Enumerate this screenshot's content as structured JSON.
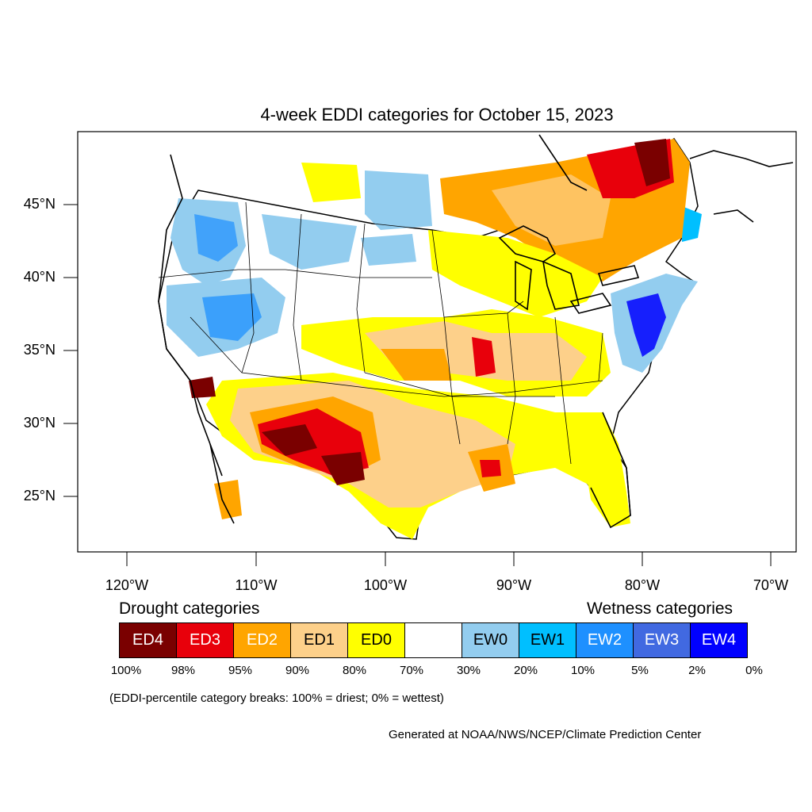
{
  "map": {
    "title": "4-week EDDI categories for October 15, 2023",
    "lat_labels": [
      "45°N",
      "40°N",
      "35°N",
      "30°N",
      "25°N"
    ],
    "lon_labels": [
      "120°W",
      "110°W",
      "100°W",
      "90°W",
      "80°W",
      "70°W"
    ],
    "lat_values": [
      45,
      40,
      35,
      30,
      25
    ],
    "lon_values": [
      -120,
      -110,
      -100,
      -90,
      -80,
      -70
    ]
  },
  "legend": {
    "drought_heading": "Drought categories",
    "wetness_heading": "Wetness categories",
    "categories": [
      {
        "label": "ED4",
        "color": "#7a0000",
        "text_color": "#ffffff"
      },
      {
        "label": "ED3",
        "color": "#e8000b",
        "text_color": "#ffffff"
      },
      {
        "label": "ED2",
        "color": "#ffa500",
        "text_color": "#ffffff"
      },
      {
        "label": "ED1",
        "color": "#fdd08a",
        "text_color": "#000000"
      },
      {
        "label": "ED0",
        "color": "#ffff00",
        "text_color": "#000000"
      },
      {
        "label": "",
        "color": "#ffffff",
        "text_color": "#000000"
      },
      {
        "label": "EW0",
        "color": "#93cdef",
        "text_color": "#000000"
      },
      {
        "label": "EW1",
        "color": "#00bfff",
        "text_color": "#000000"
      },
      {
        "label": "EW2",
        "color": "#1e90ff",
        "text_color": "#ffffff"
      },
      {
        "label": "EW3",
        "color": "#4169e1",
        "text_color": "#ffffff"
      },
      {
        "label": "EW4",
        "color": "#0000ff",
        "text_color": "#ffffff"
      }
    ],
    "percentiles": [
      "100%",
      "98%",
      "95%",
      "90%",
      "80%",
      "70%",
      "30%",
      "20%",
      "10%",
      "5%",
      "2%",
      "0%"
    ],
    "note": "(EDDI-percentile category breaks: 100% = driest; 0% = wettest)"
  },
  "credit": "Generated at NOAA/NWS/NCEP/Climate Prediction Center"
}
